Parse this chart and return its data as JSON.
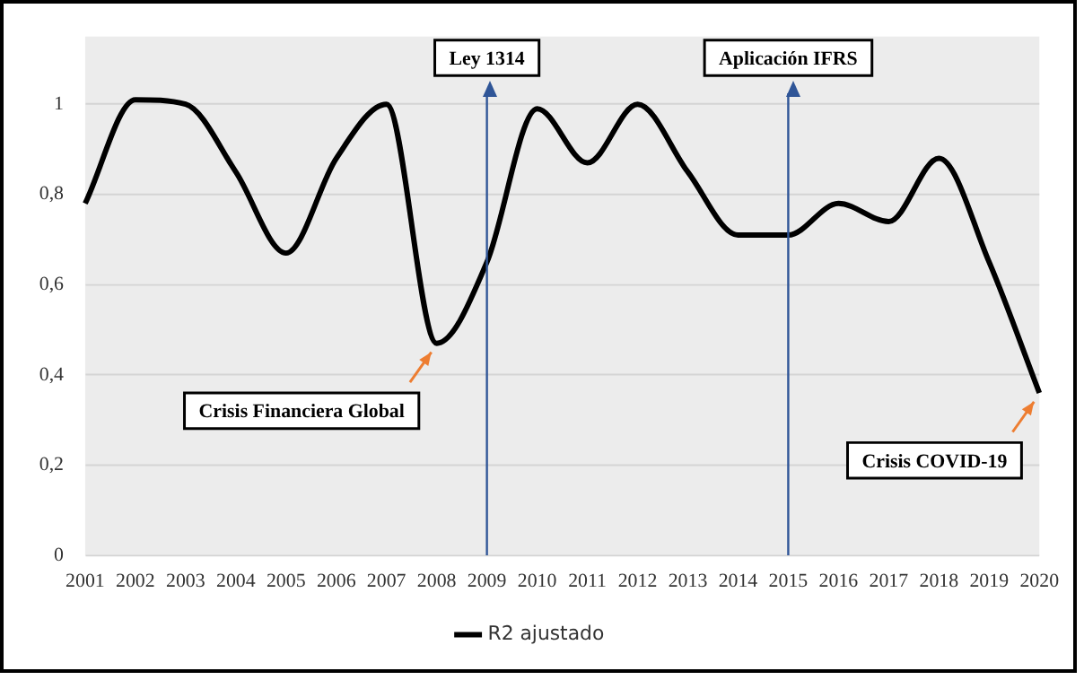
{
  "chart_data": {
    "type": "line",
    "categories": [
      "2001",
      "2002",
      "2003",
      "2004",
      "2005",
      "2006",
      "2007",
      "2008",
      "2009",
      "2010",
      "2011",
      "2012",
      "2013",
      "2014",
      "2015",
      "2016",
      "2017",
      "2018",
      "2019",
      "2020"
    ],
    "series": [
      {
        "name": "R2 ajustado",
        "color": "#000000",
        "values": [
          0.78,
          1.01,
          1.0,
          0.85,
          0.67,
          0.88,
          1.0,
          0.47,
          0.65,
          0.99,
          0.87,
          1.0,
          0.85,
          0.71,
          0.71,
          0.78,
          0.74,
          0.88,
          0.65,
          0.36
        ]
      }
    ],
    "ylim": [
      0,
      1.15
    ],
    "yticks": [
      0,
      {
        "value": 0.2,
        "label": "0,2"
      },
      {
        "value": 0.4,
        "label": "0,4"
      },
      {
        "value": 0.6,
        "label": "0,6"
      },
      {
        "value": 0.8,
        "label": "0,8"
      },
      1
    ],
    "grid": "y",
    "legend": "bottom",
    "marker": "none",
    "line_style": "solid",
    "ref_lines": [
      {
        "axis": "x",
        "value": "2009",
        "label": "Ley 1314",
        "color": "#2f5597"
      },
      {
        "axis": "x",
        "value": "2015",
        "label": "Aplicación IFRS",
        "color": "#2f5597"
      }
    ],
    "annotations": [
      {
        "text": "Crisis Financiera Global",
        "x": "2008",
        "y": 0.47
      },
      {
        "text": "Crisis COVID-19",
        "x": "2020",
        "y": 0.36
      }
    ]
  }
}
